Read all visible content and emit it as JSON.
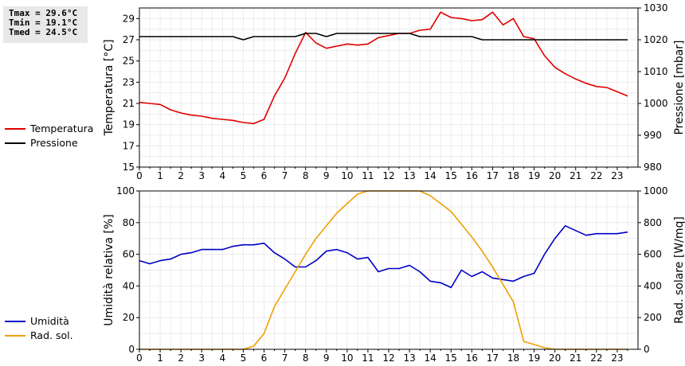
{
  "stats": {
    "tmax": "Tmax = 29.6°C",
    "tmin": "Tmin = 19.1°C",
    "tmed": "Tmed = 24.5°C"
  },
  "colors": {
    "temperature": "#e00000",
    "pressure": "#000000",
    "humidity": "#0000c8",
    "radiation": "#f0a000"
  },
  "chart_data": [
    {
      "type": "line",
      "x_ticks": [
        "0",
        "1",
        "2",
        "3",
        "4",
        "5",
        "6",
        "7",
        "8",
        "9",
        "10",
        "11",
        "12",
        "13",
        "14",
        "15",
        "16",
        "17",
        "18",
        "19",
        "20",
        "21",
        "22",
        "23"
      ],
      "xlim": [
        0,
        24
      ],
      "ylabel": "Temperatura [°C]",
      "ylabel_right": "Pressione [mbar]",
      "ylim": [
        15,
        30
      ],
      "ylim_right": [
        980,
        1030
      ],
      "y_ticks": [
        "15",
        "17",
        "19",
        "21",
        "23",
        "25",
        "27",
        "29"
      ],
      "y_ticks_right": [
        "980",
        "990",
        "1000",
        "1010",
        "1020",
        "1030"
      ],
      "grid": true,
      "legend_position": "left",
      "series": [
        {
          "name": "Temperatura",
          "axis": "left",
          "x": [
            0,
            0.5,
            1,
            1.5,
            2,
            2.5,
            3,
            3.5,
            4,
            4.5,
            5,
            5.5,
            6,
            6.5,
            7,
            7.5,
            8,
            8.5,
            9,
            9.5,
            10,
            10.5,
            11,
            11.5,
            12,
            12.5,
            13,
            13.5,
            14,
            14.5,
            15,
            15.5,
            16,
            16.5,
            17,
            17.5,
            18,
            18.5,
            19,
            19.5,
            20,
            20.5,
            21,
            21.5,
            22,
            22.5,
            23,
            23.5
          ],
          "y": [
            21.1,
            21.0,
            20.9,
            20.4,
            20.1,
            19.9,
            19.8,
            19.6,
            19.5,
            19.4,
            19.2,
            19.1,
            19.5,
            21.7,
            23.4,
            25.7,
            27.7,
            26.7,
            26.2,
            26.4,
            26.6,
            26.5,
            26.6,
            27.2,
            27.4,
            27.6,
            27.6,
            27.9,
            28.0,
            29.6,
            29.1,
            29.0,
            28.8,
            28.9,
            29.6,
            28.4,
            29.0,
            27.3,
            27.1,
            25.5,
            24.4,
            23.8,
            23.3,
            22.9,
            22.6,
            22.5,
            22.1,
            21.7
          ]
        },
        {
          "name": "Pressione",
          "axis": "right",
          "x": [
            0,
            0.5,
            1,
            1.5,
            2,
            2.5,
            3,
            3.5,
            4,
            4.5,
            5,
            5.5,
            6,
            6.5,
            7,
            7.5,
            8,
            8.5,
            9,
            9.5,
            10,
            10.5,
            11,
            11.5,
            12,
            12.5,
            13,
            13.5,
            14,
            14.5,
            15,
            15.5,
            16,
            16.5,
            17,
            17.5,
            18,
            18.5,
            19,
            19.5,
            20,
            20.5,
            21,
            21.5,
            22,
            22.5,
            23,
            23.5
          ],
          "y": [
            1021,
            1021,
            1021,
            1021,
            1021,
            1021,
            1021,
            1021,
            1021,
            1021,
            1020,
            1021,
            1021,
            1021,
            1021,
            1021,
            1022,
            1022,
            1021,
            1022,
            1022,
            1022,
            1022,
            1022,
            1022,
            1022,
            1022,
            1021,
            1021,
            1021,
            1021,
            1021,
            1021,
            1020,
            1020,
            1020,
            1020,
            1020,
            1020,
            1020,
            1020,
            1020,
            1020,
            1020,
            1020,
            1020,
            1020,
            1020
          ]
        }
      ]
    },
    {
      "type": "line",
      "x_ticks": [
        "0",
        "1",
        "2",
        "3",
        "4",
        "5",
        "6",
        "7",
        "8",
        "9",
        "10",
        "11",
        "12",
        "13",
        "14",
        "15",
        "16",
        "17",
        "18",
        "19",
        "20",
        "21",
        "22",
        "23"
      ],
      "xlim": [
        0,
        24
      ],
      "ylabel": "Umidità relativa [%]",
      "ylabel_right": "Rad. solare [W/mq]",
      "ylim": [
        0,
        100
      ],
      "ylim_right": [
        0,
        1000
      ],
      "y_ticks": [
        "0",
        "20",
        "40",
        "60",
        "80",
        "100"
      ],
      "y_ticks_right": [
        "0",
        "200",
        "400",
        "600",
        "800",
        "1000"
      ],
      "grid": true,
      "legend_position": "left",
      "series": [
        {
          "name": "Umidità",
          "axis": "left",
          "x": [
            0,
            0.5,
            1,
            1.5,
            2,
            2.5,
            3,
            3.5,
            4,
            4.5,
            5,
            5.5,
            6,
            6.5,
            7,
            7.5,
            8,
            8.5,
            9,
            9.5,
            10,
            10.5,
            11,
            11.5,
            12,
            12.5,
            13,
            13.5,
            14,
            14.5,
            15,
            15.5,
            16,
            16.5,
            17,
            17.5,
            18,
            18.5,
            19,
            19.5,
            20,
            20.5,
            21,
            21.5,
            22,
            22.5,
            23,
            23.5
          ],
          "y": [
            56,
            54,
            56,
            57,
            60,
            61,
            63,
            63,
            63,
            65,
            66,
            66,
            67,
            61,
            57,
            52,
            52,
            56,
            62,
            63,
            61,
            57,
            58,
            49,
            51,
            51,
            53,
            49,
            43,
            42,
            39,
            50,
            46,
            49,
            45,
            44,
            43,
            46,
            48,
            60,
            70,
            78,
            75,
            72,
            73,
            73,
            73,
            74
          ]
        },
        {
          "name": "Rad. sol.",
          "axis": "right",
          "x": [
            0,
            0.5,
            1,
            1.5,
            2,
            2.5,
            3,
            3.5,
            4,
            4.5,
            5,
            5.5,
            6,
            6.5,
            7,
            7.5,
            8,
            8.5,
            9,
            9.5,
            10,
            10.5,
            11,
            11.5,
            12,
            12.5,
            13,
            13.5,
            14,
            14.5,
            15,
            15.5,
            16,
            16.5,
            17,
            17.5,
            18,
            18.5,
            19,
            19.5,
            20,
            20.5,
            21,
            21.5,
            22,
            22.5,
            23,
            23.5
          ],
          "y": [
            0,
            0,
            0,
            0,
            0,
            0,
            0,
            0,
            0,
            0,
            0,
            20,
            100,
            270,
            380,
            490,
            600,
            700,
            780,
            860,
            920,
            980,
            1000,
            1000,
            1000,
            1000,
            1000,
            1000,
            970,
            920,
            870,
            790,
            710,
            620,
            520,
            410,
            300,
            50,
            30,
            10,
            0,
            0,
            0,
            0,
            0,
            0,
            0,
            0
          ]
        }
      ]
    }
  ]
}
